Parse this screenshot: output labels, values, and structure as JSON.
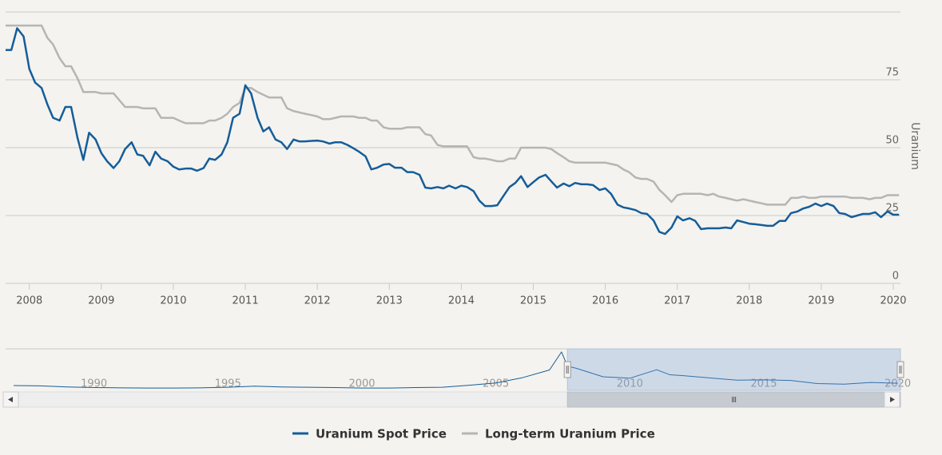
{
  "chart_data": [
    {
      "type": "line",
      "y_label": "Uranium",
      "legend": "bottom",
      "grid": true,
      "xlim": [
        2007.67,
        2020.1
      ],
      "xticks": [
        2008,
        2009,
        2010,
        2011,
        2012,
        2013,
        2014,
        2015,
        2016,
        2017,
        2018,
        2019,
        2020
      ],
      "ylim": [
        0,
        100
      ],
      "yticks": [
        0,
        25,
        50,
        75
      ],
      "x": [
        2007.67,
        2007.75,
        2007.83,
        2007.92,
        2008,
        2008.08,
        2008.17,
        2008.25,
        2008.33,
        2008.42,
        2008.5,
        2008.58,
        2008.67,
        2008.75,
        2008.83,
        2008.92,
        2009,
        2009.08,
        2009.17,
        2009.25,
        2009.33,
        2009.42,
        2009.5,
        2009.58,
        2009.67,
        2009.75,
        2009.83,
        2009.92,
        2010,
        2010.08,
        2010.17,
        2010.25,
        2010.33,
        2010.42,
        2010.5,
        2010.58,
        2010.67,
        2010.75,
        2010.83,
        2010.92,
        2011,
        2011.08,
        2011.17,
        2011.25,
        2011.33,
        2011.42,
        2011.5,
        2011.58,
        2011.67,
        2011.75,
        2011.83,
        2011.92,
        2012,
        2012.08,
        2012.17,
        2012.25,
        2012.33,
        2012.42,
        2012.5,
        2012.58,
        2012.67,
        2012.75,
        2012.83,
        2012.92,
        2013,
        2013.08,
        2013.17,
        2013.25,
        2013.33,
        2013.42,
        2013.5,
        2013.58,
        2013.67,
        2013.75,
        2013.83,
        2013.92,
        2014,
        2014.08,
        2014.17,
        2014.25,
        2014.33,
        2014.42,
        2014.5,
        2014.58,
        2014.67,
        2014.75,
        2014.83,
        2014.92,
        2015,
        2015.08,
        2015.17,
        2015.25,
        2015.33,
        2015.42,
        2015.5,
        2015.58,
        2015.67,
        2015.75,
        2015.83,
        2015.92,
        2016,
        2016.08,
        2016.17,
        2016.25,
        2016.33,
        2016.42,
        2016.5,
        2016.58,
        2016.67,
        2016.75,
        2016.83,
        2016.92,
        2017,
        2017.08,
        2017.17,
        2017.25,
        2017.33,
        2017.42,
        2017.5,
        2017.58,
        2017.67,
        2017.75,
        2017.83,
        2017.92,
        2018,
        2018.08,
        2018.17,
        2018.25,
        2018.33,
        2018.42,
        2018.5,
        2018.58,
        2018.67,
        2018.75,
        2018.83,
        2018.92,
        2019,
        2019.08,
        2019.17,
        2019.25,
        2019.33,
        2019.42,
        2019.5,
        2019.58,
        2019.67,
        2019.75,
        2019.83,
        2019.92,
        2020,
        2020.08
      ],
      "series": [
        {
          "name": "Uranium Spot Price",
          "color": "#155d99",
          "values": [
            86,
            86,
            94,
            91,
            79,
            74,
            72,
            66,
            61,
            60,
            65,
            65,
            53.5,
            45.5,
            55.5,
            53,
            48,
            45,
            42.5,
            45,
            49.5,
            52,
            47.5,
            47,
            43.5,
            48.5,
            46,
            45,
            43,
            42,
            42.3,
            42.3,
            41.5,
            42.5,
            46,
            45.5,
            47.5,
            52,
            61,
            62.5,
            73,
            70,
            61,
            56,
            57.5,
            53,
            52,
            49.5,
            53,
            52.3,
            52.3,
            52.5,
            52.6,
            52.3,
            51.5,
            52,
            52,
            51,
            49.8,
            48.5,
            46.8,
            42,
            42.6,
            43.8,
            44,
            42.6,
            42.6,
            41,
            41,
            40,
            35.3,
            35,
            35.5,
            35,
            36,
            35,
            36,
            35.5,
            34,
            30.5,
            28.5,
            28.5,
            28.8,
            32,
            35.5,
            37,
            39.5,
            35.5,
            37.3,
            39,
            40,
            37.6,
            35.3,
            36.8,
            35.8,
            37,
            36.5,
            36.5,
            36.2,
            34.4,
            35,
            33,
            29,
            28,
            27.6,
            27,
            25.9,
            25.6,
            23.2,
            19,
            18.2,
            20.6,
            24.7,
            23.2,
            24,
            23,
            20,
            20.3,
            20.3,
            20.3,
            20.6,
            20.3,
            23.2,
            22.6,
            22,
            21.8,
            21.5,
            21.2,
            21.2,
            23,
            23,
            25.9,
            26.5,
            27.6,
            28.2,
            29.4,
            28.5,
            29.4,
            28.5,
            25.9,
            25.6,
            24.4,
            25,
            25.6,
            25.6,
            26.2,
            24.4,
            26.5,
            25.3,
            25.3
          ]
        },
        {
          "name": "Long-term Uranium Price",
          "color": "#b5b5b5",
          "values": [
            95,
            95,
            95,
            95,
            95,
            95,
            95,
            90.5,
            88,
            83,
            80,
            80,
            75.5,
            70.5,
            70.5,
            70.5,
            70,
            70,
            70,
            67.5,
            65,
            65,
            65,
            64.5,
            64.5,
            64.5,
            61,
            61,
            61,
            60,
            59,
            59,
            59,
            59,
            60,
            60,
            61,
            62.5,
            65,
            66.5,
            72,
            72,
            70.5,
            69.5,
            68.5,
            68.5,
            68.5,
            64.5,
            63.5,
            63,
            62.5,
            62,
            61.5,
            60.5,
            60.5,
            61,
            61.5,
            61.5,
            61.5,
            61,
            61,
            60,
            60,
            57.5,
            57,
            57,
            57,
            57.5,
            57.5,
            57.5,
            55,
            54.5,
            51,
            50.5,
            50.5,
            50.5,
            50.5,
            50.5,
            46.5,
            46,
            46,
            45.5,
            45,
            45,
            46,
            46,
            50,
            50,
            50,
            50,
            50,
            49.5,
            48,
            46.5,
            45,
            44.5,
            44.5,
            44.5,
            44.5,
            44.5,
            44.5,
            44,
            43.5,
            42,
            41,
            39,
            38.5,
            38.5,
            37.5,
            34.5,
            32.5,
            30,
            32.5,
            33,
            33,
            33,
            33,
            32.5,
            33,
            32,
            31.5,
            31,
            30.5,
            31,
            30.5,
            30,
            29.5,
            29,
            29,
            29,
            29,
            31.5,
            31.5,
            32,
            31.5,
            31.5,
            32,
            32,
            32,
            32,
            32,
            31.5,
            31.5,
            31.5,
            31,
            31.5,
            31.5,
            32.5,
            32.5,
            32.5
          ]
        }
      ]
    },
    {
      "type": "line",
      "xlim": [
        1986.7,
        2020.1
      ],
      "xticks": [
        1990,
        1995,
        2000,
        2005,
        2010,
        2015,
        2020
      ],
      "ylim": [
        0,
        147
      ],
      "x": [
        1987,
        1988,
        1989,
        1990,
        1991,
        1992,
        1993,
        1994,
        1995,
        1996,
        1997,
        1998,
        1999,
        2000,
        2001,
        2002,
        2003,
        2004,
        2005,
        2006,
        2007,
        2007.45,
        2007.67,
        2008,
        2009,
        2010,
        2011,
        2011.5,
        2012,
        2013,
        2014,
        2015,
        2016,
        2017,
        2018,
        2019,
        2020
      ],
      "series": [
        {
          "color": "#155d99",
          "values": [
            17,
            16,
            12,
            10,
            9,
            8,
            8,
            9,
            11,
            15,
            12,
            11,
            10,
            8,
            8,
            10,
            11,
            18,
            26,
            45,
            72,
            136,
            86,
            78,
            48,
            43,
            73,
            55,
            52,
            44,
            36,
            37,
            35,
            24,
            22,
            28,
            25
          ]
        }
      ]
    }
  ]
}
